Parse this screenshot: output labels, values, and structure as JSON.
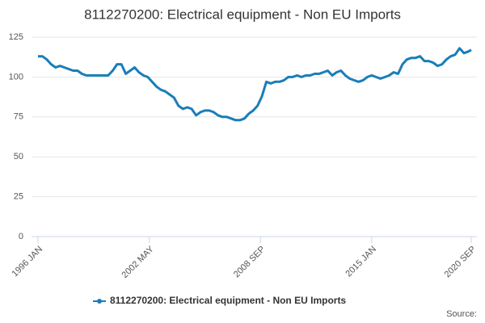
{
  "chart_data": {
    "type": "line",
    "title": "8112270200: Electrical equipment - Non EU Imports",
    "source": "Source:",
    "x": [
      1996,
      1996.25,
      1996.5,
      1996.75,
      1997,
      1997.25,
      1997.5,
      1997.75,
      1998,
      1998.25,
      1998.5,
      1998.75,
      1999,
      1999.25,
      1999.5,
      1999.75,
      2000,
      2000.25,
      2000.5,
      2000.75,
      2001,
      2001.25,
      2001.5,
      2001.75,
      2002,
      2002.25,
      2002.5,
      2002.75,
      2003,
      2003.25,
      2003.5,
      2003.75,
      2004,
      2004.25,
      2004.5,
      2004.75,
      2005,
      2005.25,
      2005.5,
      2005.75,
      2006,
      2006.25,
      2006.5,
      2006.75,
      2007,
      2007.25,
      2007.5,
      2007.75,
      2008,
      2008.25,
      2008.5,
      2008.75,
      2009,
      2009.25,
      2009.5,
      2009.75,
      2010,
      2010.25,
      2010.5,
      2010.75,
      2011,
      2011.25,
      2011.5,
      2011.75,
      2012,
      2012.25,
      2012.5,
      2012.75,
      2013,
      2013.25,
      2013.5,
      2013.75,
      2014,
      2014.25,
      2014.5,
      2014.75,
      2015,
      2015.25,
      2015.5,
      2015.75,
      2016,
      2016.25,
      2016.5,
      2016.75,
      2017,
      2017.25,
      2017.5,
      2017.75,
      2018,
      2018.25,
      2018.5,
      2018.75,
      2019,
      2019.25,
      2019.5,
      2019.75,
      2020,
      2020.25,
      2020.5,
      2020.6667
    ],
    "series": [
      {
        "name": "8112270200: Electrical equipment - Non EU Imports",
        "color": "#1a7db8",
        "values": [
          113,
          113,
          111,
          108,
          106,
          107,
          106,
          105,
          104,
          104,
          102,
          101,
          101,
          101,
          101,
          101,
          101,
          104,
          108,
          108,
          102,
          104,
          106,
          103,
          101,
          100,
          97,
          94,
          92,
          91,
          89,
          87,
          82,
          80,
          81,
          80,
          76,
          78,
          79,
          79,
          78,
          76,
          75,
          75,
          74,
          73,
          73,
          74,
          77,
          79,
          82,
          88,
          97,
          96,
          97,
          97,
          98,
          100,
          100,
          101,
          100,
          101,
          101,
          102,
          102,
          103,
          104,
          101,
          103,
          104,
          101,
          99,
          98,
          97,
          98,
          100,
          101,
          100,
          99,
          100,
          101,
          103,
          102,
          108,
          111,
          112,
          112,
          113,
          110,
          110,
          109,
          107,
          108,
          111,
          113,
          114,
          118,
          115,
          116,
          117
        ]
      }
    ],
    "xlim": [
      1996,
      2020.6667
    ],
    "xticks": [
      {
        "value": 1996,
        "label": "1996 JAN"
      },
      {
        "value": 2002.3333,
        "label": "2002 MAY"
      },
      {
        "value": 2008.6667,
        "label": "2008 SEP"
      },
      {
        "value": 2015,
        "label": "2015 JAN"
      },
      {
        "value": 2020.6667,
        "label": "2020 SEP"
      }
    ],
    "ylim": [
      0,
      125
    ],
    "yticks": [
      0,
      25,
      50,
      75,
      100,
      125
    ],
    "grid": true
  }
}
